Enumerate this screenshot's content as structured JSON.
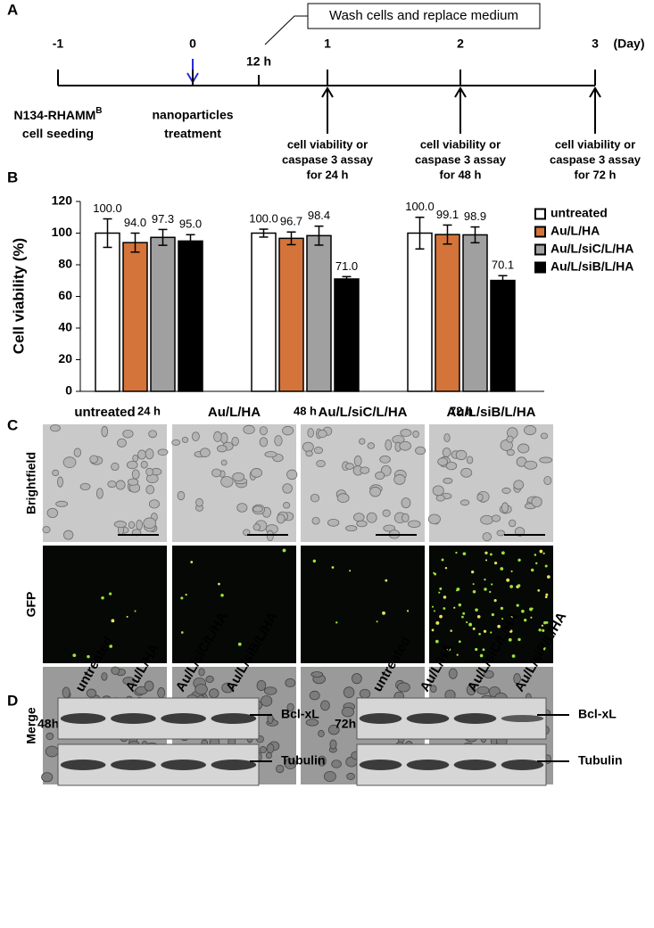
{
  "panel_a": {
    "label": "A",
    "callout": "Wash cells and replace medium",
    "unit": "(Day)",
    "days": [
      "-1",
      "0",
      "1",
      "2",
      "3"
    ],
    "mid_tick": "12 h",
    "seeding": [
      "N134-RHAMM",
      "B",
      "cell seeding"
    ],
    "treatment": [
      "nanoparticles",
      "treatment"
    ],
    "assays": [
      [
        "cell viability or",
        "caspase 3 assay",
        "for 24 h"
      ],
      [
        "cell viability or",
        "caspase 3 assay",
        "for 48 h"
      ],
      [
        "cell viability or",
        "caspase 3 assay",
        "for 72 h"
      ]
    ]
  },
  "chart_data": {
    "type": "bar",
    "panel_label": "B",
    "y_label": "Cell viability (%)",
    "categories": [
      "24 h",
      "48 h",
      "72 h"
    ],
    "series": [
      {
        "name": "untreated",
        "color": "#ffffff",
        "values": [
          100.0,
          100.0,
          100.0
        ],
        "errors": [
          9,
          2.5,
          10
        ],
        "value_labels": [
          "100.0",
          "100.0",
          "100.0"
        ]
      },
      {
        "name": "Au/L/HA",
        "color": "#d4743a",
        "values": [
          94.0,
          96.7,
          99.1
        ],
        "errors": [
          6,
          4,
          6
        ],
        "value_labels": [
          "94.0",
          "96.7",
          "99.1"
        ]
      },
      {
        "name": "Au/L/siC/L/HA",
        "color": "#a0a0a0",
        "values": [
          97.3,
          98.4,
          98.9
        ],
        "errors": [
          5,
          6,
          5
        ],
        "value_labels": [
          "97.3",
          "98.4",
          "98.9"
        ]
      },
      {
        "name": "Au/L/siB/L/HA",
        "color": "#000000",
        "values": [
          95.0,
          71.0,
          70.1
        ],
        "errors": [
          4,
          1.5,
          3
        ],
        "value_labels": [
          "95.0",
          "71.0",
          "70.1"
        ]
      }
    ],
    "ylim": [
      0,
      120
    ],
    "yticks": [
      0,
      20,
      40,
      60,
      80,
      100,
      120
    ],
    "legend": "right"
  },
  "panel_c": {
    "label": "C",
    "columns": [
      "untreated",
      "Au/L/HA",
      "Au/L/siC/L/HA",
      "Au/L/siB/L/HA"
    ],
    "rows": [
      "Brightfield",
      "GFP",
      "Merge"
    ]
  },
  "panel_d": {
    "label": "D",
    "blots": [
      {
        "time": "48h",
        "lanes": [
          "untreated",
          "Au/L/HA",
          "Au/L/siC/L/HA",
          "Au/L/siB/L/HA"
        ],
        "bands": [
          "Bcl-xL",
          "Tubulin"
        ]
      },
      {
        "time": "72h",
        "lanes": [
          "untreated",
          "Au/L/HA",
          "Au/L/siC/L/HA",
          "Au/L/siB/L/HA"
        ],
        "bands": [
          "Bcl-xL",
          "Tubulin"
        ]
      }
    ]
  }
}
